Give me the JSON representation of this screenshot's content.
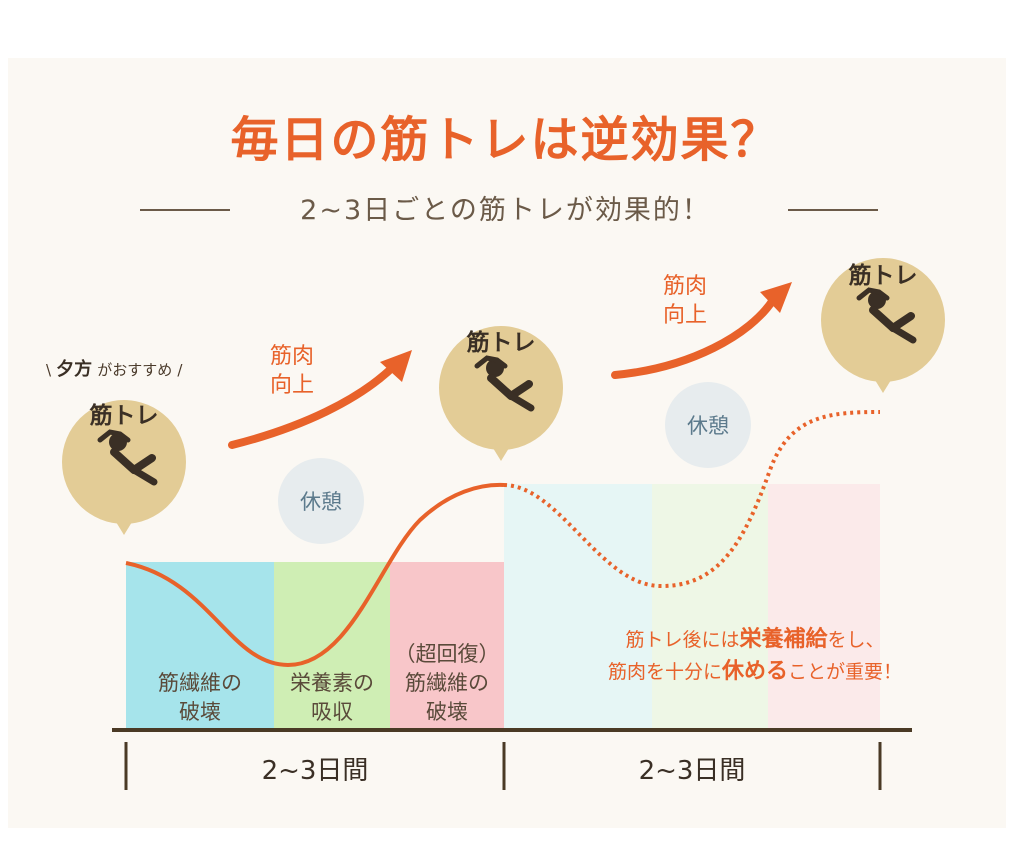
{
  "title": "毎日の筋トレは逆効果？",
  "subtitle": "2~3日ごとの筋トレが効果的！",
  "badges": {
    "first_tag_prefix": "\\",
    "first_tag_main": "夕方",
    "first_tag_rest": "がおすすめ",
    "first_tag_suffix": "/",
    "label": "筋トレ"
  },
  "muscle_up": {
    "line1": "筋肉",
    "line2": "向上"
  },
  "rest_label": "休憩",
  "stages": [
    {
      "line1": "",
      "line2": "筋繊維の",
      "line3": "破壊",
      "color": "#a6e4eb"
    },
    {
      "line1": "",
      "line2": "栄養素の",
      "line3": "吸収",
      "color": "#cfeeb4"
    },
    {
      "line1": "（超回復）",
      "line2": "筋繊維の",
      "line3": "破壊",
      "color": "#f8c6c9"
    }
  ],
  "faded_colors": [
    "#e6f6f5",
    "#eef7e6",
    "#fbeaea"
  ],
  "note": {
    "p1": "筋トレ後には",
    "p1_em": "栄養補給",
    "p1_end": "をし、",
    "p2": "筋肉を十分に",
    "p2_em": "休める",
    "p2_end": "ことが重要！"
  },
  "periods": [
    "2~3日間",
    "2~3日間"
  ],
  "colors": {
    "accent": "#e8622a",
    "badge": "#e3cc96",
    "text": "#3a2f25"
  },
  "icons": [
    "situp-person-icon",
    "arrow-up-right-icon"
  ]
}
